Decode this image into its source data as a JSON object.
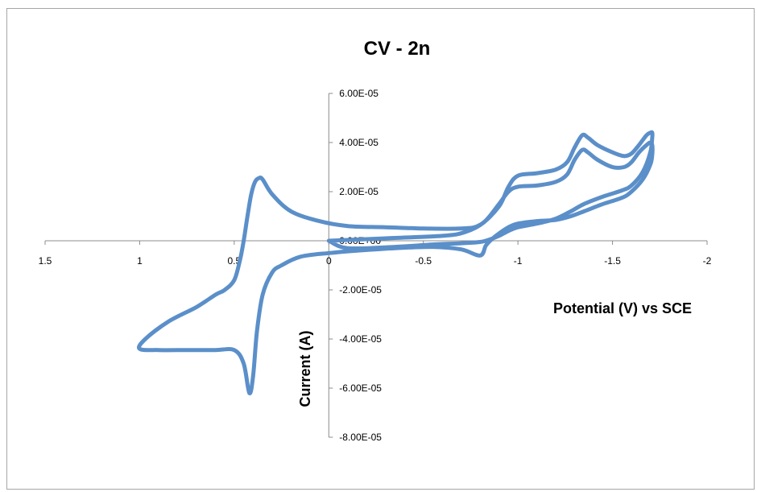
{
  "chart_data": {
    "type": "line",
    "title": "CV - 2n",
    "xlabel": "Potential (V) vs SCE",
    "ylabel": "Current (A)",
    "xlim": [
      1.5,
      -2
    ],
    "ylim": [
      -8e-05,
      6e-05
    ],
    "x_ticks": [
      1.5,
      1,
      0.5,
      0,
      -0.5,
      -1,
      -1.5,
      -2
    ],
    "x_tick_labels": [
      "1.5",
      "1",
      "0.5",
      "0",
      "-0.5",
      "-1",
      "-1.5",
      "-2"
    ],
    "y_ticks": [
      6e-05,
      4e-05,
      2e-05,
      0,
      -2e-05,
      -4e-05,
      -6e-05,
      -8e-05
    ],
    "y_tick_labels": [
      "6.00E-05",
      "4.00E-05",
      "2.00E-05",
      "0.00E+00",
      "-2.00E-05",
      "-4.00E-05",
      "-6.00E-05",
      "-8.00E-05"
    ],
    "grid": false,
    "legend": "none",
    "series_color": "#5b8fc9",
    "series": [
      {
        "x": [
          0.0,
          -0.3,
          -0.6,
          -0.72,
          -0.82,
          -0.9,
          -0.95,
          -1.0,
          -1.1,
          -1.2,
          -1.26,
          -1.3,
          -1.34,
          -1.37,
          -1.42,
          -1.5,
          -1.56,
          -1.6,
          -1.64,
          -1.68,
          -1.7,
          -1.71,
          -1.71,
          -1.7,
          -1.66,
          -1.6,
          -1.55,
          -1.45,
          -1.35,
          -1.28,
          -1.2,
          -1.1,
          -1.0,
          -0.95,
          -0.9,
          -0.86,
          -0.83,
          -0.8,
          -0.7,
          -0.55,
          -0.35,
          -0.15,
          0.0,
          0.15,
          0.25,
          0.3,
          0.35,
          0.38,
          0.4,
          0.42,
          0.45,
          0.5,
          0.6,
          0.75,
          0.9,
          1.0,
          0.97,
          0.85,
          0.7,
          0.6,
          0.55,
          0.5,
          0.47,
          0.45,
          0.43,
          0.41,
          0.39,
          0.37,
          0.35,
          0.3,
          0.2,
          0.05,
          -0.1,
          -0.3,
          -0.5,
          -0.7,
          -0.8,
          -0.9,
          -0.95,
          -1.0,
          -1.1,
          -1.2,
          -1.26,
          -1.3,
          -1.34,
          -1.37,
          -1.42,
          -1.5,
          -1.56,
          -1.6,
          -1.64,
          -1.68,
          -1.7,
          -1.71,
          -1.71,
          -1.7,
          -1.66,
          -1.6,
          -1.55,
          -1.45,
          -1.35,
          -1.28,
          -1.2,
          -1.1,
          -1.0,
          -0.95,
          -0.9,
          -0.85,
          -0.8,
          -0.7,
          -0.55,
          -0.35,
          -0.1,
          0.0
        ],
        "y": [
          0.0,
          1e-06,
          2e-06,
          3.5e-06,
          7.5e-06,
          1.5e-05,
          2e-05,
          2.2e-05,
          2.25e-05,
          2.4e-05,
          2.7e-05,
          3.3e-05,
          3.7e-05,
          3.6e-05,
          3.3e-05,
          3e-05,
          3e-05,
          3.2e-05,
          3.6e-05,
          3.9e-05,
          4e-05,
          3.9e-05,
          3.5e-05,
          3.1e-05,
          2.5e-05,
          2e-05,
          1.75e-05,
          1.5e-05,
          1.2e-05,
          1e-05,
          8.5e-06,
          8e-06,
          7e-06,
          5.5e-06,
          3e-06,
          5e-07,
          -2e-06,
          -6e-06,
          -3.5e-06,
          -2.5e-06,
          -3e-06,
          -4e-06,
          -5e-06,
          -6.5e-06,
          -1e-05,
          -1.3e-05,
          -2.2e-05,
          -3.7e-05,
          -5.5e-05,
          -6.2e-05,
          -5e-05,
          -4.45e-05,
          -4.45e-05,
          -4.45e-05,
          -4.45e-05,
          -4.4e-05,
          -4e-05,
          -3.3e-05,
          -2.7e-05,
          -2.2e-05,
          -2e-05,
          -1.6e-05,
          -8e-06,
          0.0,
          1e-05,
          1.9e-05,
          2.4e-05,
          2.55e-05,
          2.5e-05,
          1.9e-05,
          1.2e-05,
          8e-06,
          6e-06,
          5.5e-06,
          5e-06,
          5e-06,
          6.5e-06,
          1.4e-05,
          2.2e-05,
          2.65e-05,
          2.75e-05,
          2.9e-05,
          3.2e-05,
          3.8e-05,
          4.3e-05,
          4.2e-05,
          3.9e-05,
          3.6e-05,
          3.45e-05,
          3.55e-05,
          3.9e-05,
          4.3e-05,
          4.4e-05,
          4.4e-05,
          4.2e-05,
          3.6e-05,
          2.8e-05,
          2.25e-05,
          2.05e-05,
          1.8e-05,
          1.5e-05,
          1.2e-05,
          9e-06,
          7e-06,
          5.5e-06,
          4e-06,
          2e-06,
          5e-07,
          -5e-07,
          -1e-06,
          -1.5e-06,
          -2.5e-06,
          -3e-06,
          0.0
        ]
      }
    ]
  }
}
